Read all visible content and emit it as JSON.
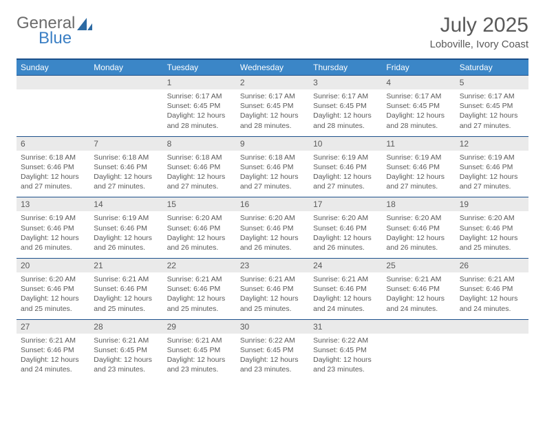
{
  "logo": {
    "text1": "General",
    "text2": "Blue",
    "text1_color": "#6b6b6b",
    "text2_color": "#3b7fc4",
    "icon_color": "#2d6aa3"
  },
  "title": "July 2025",
  "location": "Loboville, Ivory Coast",
  "colors": {
    "header_bg": "#3b86c7",
    "header_text": "#ffffff",
    "border_dark": "#1b4f8a",
    "daynum_bg": "#eaeaea",
    "text_color": "#595959",
    "page_bg": "#ffffff"
  },
  "fonts": {
    "title_size": 30,
    "location_size": 15,
    "dayhead_size": 12,
    "daynum_size": 12,
    "detail_size": 10.5
  },
  "dayNames": [
    "Sunday",
    "Monday",
    "Tuesday",
    "Wednesday",
    "Thursday",
    "Friday",
    "Saturday"
  ],
  "weeks": [
    {
      "days": [
        {
          "num": "",
          "sunrise": "",
          "sunset": "",
          "daylight": ""
        },
        {
          "num": "",
          "sunrise": "",
          "sunset": "",
          "daylight": ""
        },
        {
          "num": "1",
          "sunrise": "6:17 AM",
          "sunset": "6:45 PM",
          "daylight": "12 hours and 28 minutes."
        },
        {
          "num": "2",
          "sunrise": "6:17 AM",
          "sunset": "6:45 PM",
          "daylight": "12 hours and 28 minutes."
        },
        {
          "num": "3",
          "sunrise": "6:17 AM",
          "sunset": "6:45 PM",
          "daylight": "12 hours and 28 minutes."
        },
        {
          "num": "4",
          "sunrise": "6:17 AM",
          "sunset": "6:45 PM",
          "daylight": "12 hours and 28 minutes."
        },
        {
          "num": "5",
          "sunrise": "6:17 AM",
          "sunset": "6:45 PM",
          "daylight": "12 hours and 27 minutes."
        }
      ]
    },
    {
      "days": [
        {
          "num": "6",
          "sunrise": "6:18 AM",
          "sunset": "6:46 PM",
          "daylight": "12 hours and 27 minutes."
        },
        {
          "num": "7",
          "sunrise": "6:18 AM",
          "sunset": "6:46 PM",
          "daylight": "12 hours and 27 minutes."
        },
        {
          "num": "8",
          "sunrise": "6:18 AM",
          "sunset": "6:46 PM",
          "daylight": "12 hours and 27 minutes."
        },
        {
          "num": "9",
          "sunrise": "6:18 AM",
          "sunset": "6:46 PM",
          "daylight": "12 hours and 27 minutes."
        },
        {
          "num": "10",
          "sunrise": "6:19 AM",
          "sunset": "6:46 PM",
          "daylight": "12 hours and 27 minutes."
        },
        {
          "num": "11",
          "sunrise": "6:19 AM",
          "sunset": "6:46 PM",
          "daylight": "12 hours and 27 minutes."
        },
        {
          "num": "12",
          "sunrise": "6:19 AM",
          "sunset": "6:46 PM",
          "daylight": "12 hours and 27 minutes."
        }
      ]
    },
    {
      "days": [
        {
          "num": "13",
          "sunrise": "6:19 AM",
          "sunset": "6:46 PM",
          "daylight": "12 hours and 26 minutes."
        },
        {
          "num": "14",
          "sunrise": "6:19 AM",
          "sunset": "6:46 PM",
          "daylight": "12 hours and 26 minutes."
        },
        {
          "num": "15",
          "sunrise": "6:20 AM",
          "sunset": "6:46 PM",
          "daylight": "12 hours and 26 minutes."
        },
        {
          "num": "16",
          "sunrise": "6:20 AM",
          "sunset": "6:46 PM",
          "daylight": "12 hours and 26 minutes."
        },
        {
          "num": "17",
          "sunrise": "6:20 AM",
          "sunset": "6:46 PM",
          "daylight": "12 hours and 26 minutes."
        },
        {
          "num": "18",
          "sunrise": "6:20 AM",
          "sunset": "6:46 PM",
          "daylight": "12 hours and 26 minutes."
        },
        {
          "num": "19",
          "sunrise": "6:20 AM",
          "sunset": "6:46 PM",
          "daylight": "12 hours and 25 minutes."
        }
      ]
    },
    {
      "days": [
        {
          "num": "20",
          "sunrise": "6:20 AM",
          "sunset": "6:46 PM",
          "daylight": "12 hours and 25 minutes."
        },
        {
          "num": "21",
          "sunrise": "6:21 AM",
          "sunset": "6:46 PM",
          "daylight": "12 hours and 25 minutes."
        },
        {
          "num": "22",
          "sunrise": "6:21 AM",
          "sunset": "6:46 PM",
          "daylight": "12 hours and 25 minutes."
        },
        {
          "num": "23",
          "sunrise": "6:21 AM",
          "sunset": "6:46 PM",
          "daylight": "12 hours and 25 minutes."
        },
        {
          "num": "24",
          "sunrise": "6:21 AM",
          "sunset": "6:46 PM",
          "daylight": "12 hours and 24 minutes."
        },
        {
          "num": "25",
          "sunrise": "6:21 AM",
          "sunset": "6:46 PM",
          "daylight": "12 hours and 24 minutes."
        },
        {
          "num": "26",
          "sunrise": "6:21 AM",
          "sunset": "6:46 PM",
          "daylight": "12 hours and 24 minutes."
        }
      ]
    },
    {
      "days": [
        {
          "num": "27",
          "sunrise": "6:21 AM",
          "sunset": "6:46 PM",
          "daylight": "12 hours and 24 minutes."
        },
        {
          "num": "28",
          "sunrise": "6:21 AM",
          "sunset": "6:45 PM",
          "daylight": "12 hours and 23 minutes."
        },
        {
          "num": "29",
          "sunrise": "6:21 AM",
          "sunset": "6:45 PM",
          "daylight": "12 hours and 23 minutes."
        },
        {
          "num": "30",
          "sunrise": "6:22 AM",
          "sunset": "6:45 PM",
          "daylight": "12 hours and 23 minutes."
        },
        {
          "num": "31",
          "sunrise": "6:22 AM",
          "sunset": "6:45 PM",
          "daylight": "12 hours and 23 minutes."
        },
        {
          "num": "",
          "sunrise": "",
          "sunset": "",
          "daylight": ""
        },
        {
          "num": "",
          "sunrise": "",
          "sunset": "",
          "daylight": ""
        }
      ]
    }
  ],
  "labels": {
    "sunrise": "Sunrise:",
    "sunset": "Sunset:",
    "daylight": "Daylight:"
  }
}
